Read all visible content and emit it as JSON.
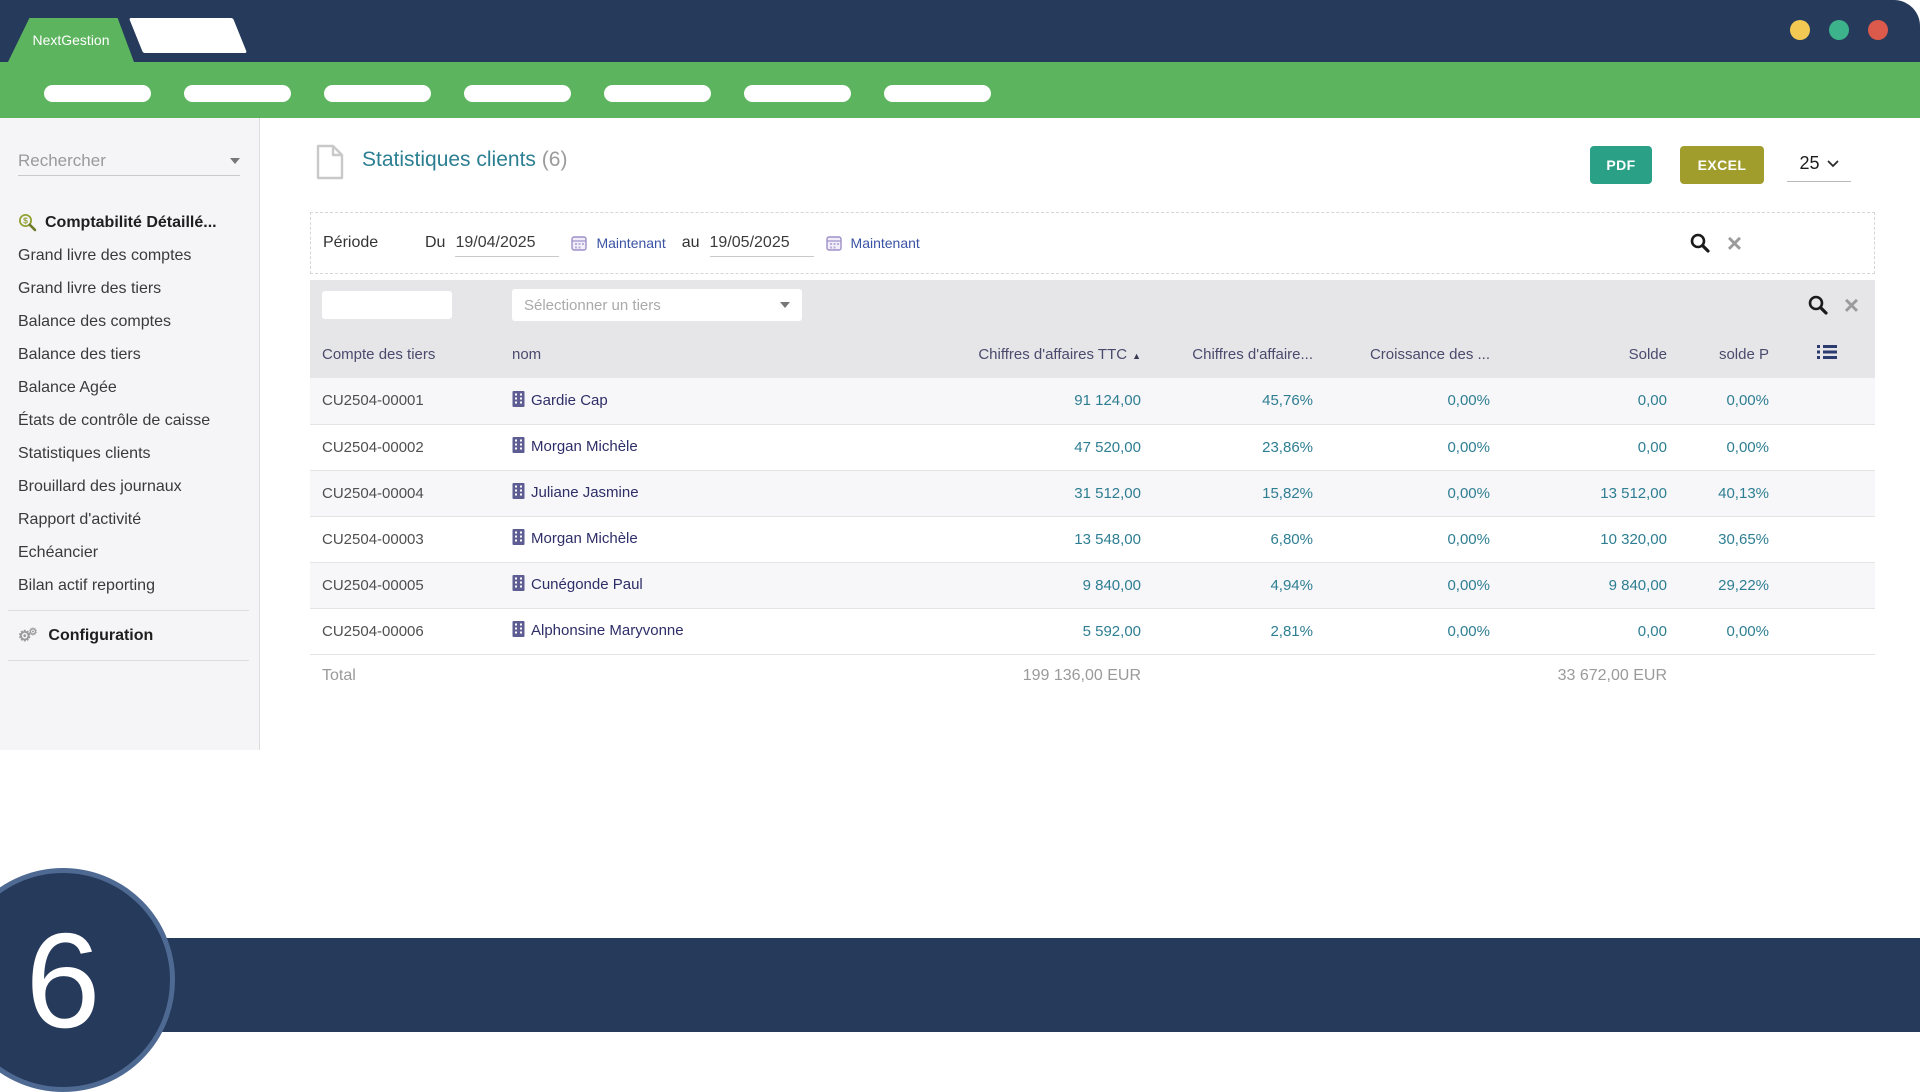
{
  "app": {
    "brand": "NextGestion"
  },
  "window_controls": {
    "colors": [
      "#f2ca53",
      "#3cb38b",
      "#dc5a4b"
    ]
  },
  "topnav": {
    "pill_count": 7
  },
  "accent": {
    "navy": "#263a5b",
    "green": "#5cb45e",
    "teal": "#2c7f92",
    "pdf_button": "#2aa187",
    "excel_button": "#a19d2d",
    "link_indigo": "#3a53a4",
    "name_indigo": "#2e2e68"
  },
  "sidebar": {
    "search_placeholder": "Rechercher",
    "items": [
      {
        "label": "Comptabilité Détaillé...",
        "bold": true,
        "icon": "search-dollar-icon"
      },
      {
        "label": "Grand livre des comptes"
      },
      {
        "label": "Grand livre des tiers"
      },
      {
        "label": "Balance des comptes"
      },
      {
        "label": "Balance des tiers"
      },
      {
        "label": "Balance Agée"
      },
      {
        "label": "États de contrôle de caisse"
      },
      {
        "label": "Statistiques clients"
      },
      {
        "label": "Brouillard des journaux"
      },
      {
        "label": "Rapport d'activité"
      },
      {
        "label": "Echéancier"
      },
      {
        "label": "Bilan actif reporting"
      }
    ],
    "config": {
      "label": "Configuration",
      "icon": "gears-icon"
    }
  },
  "header": {
    "title": "Statistiques clients",
    "count": "(6)",
    "pdf_label": "PDF",
    "excel_label": "EXCEL",
    "page_size": "25"
  },
  "period": {
    "label": "Période",
    "from_label": "Du",
    "from_value": "19/04/2025",
    "from_now": "Maintenant",
    "to_label": "au",
    "to_value": "19/05/2025",
    "to_now": "Maintenant"
  },
  "filters": {
    "tiers_placeholder": "Sélectionner un tiers"
  },
  "table": {
    "columns": [
      "Compte des tiers",
      "nom",
      "Chiffres d'affaires TTC",
      "Chiffres d'affaire...",
      "Croissance des ...",
      "Solde",
      "solde P"
    ],
    "sorted_column": "Chiffres d'affaires TTC",
    "sort_direction": "asc",
    "rows": [
      {
        "code": "CU2504-00001",
        "name": "Gardie Cap",
        "ca_ttc": "91 124,00",
        "ca_pct": "45,76%",
        "croissance": "0,00%",
        "solde": "0,00",
        "solde_p": "0,00%"
      },
      {
        "code": "CU2504-00002",
        "name": "Morgan Michèle",
        "ca_ttc": "47 520,00",
        "ca_pct": "23,86%",
        "croissance": "0,00%",
        "solde": "0,00",
        "solde_p": "0,00%"
      },
      {
        "code": "CU2504-00004",
        "name": "Juliane Jasmine",
        "ca_ttc": "31 512,00",
        "ca_pct": "15,82%",
        "croissance": "0,00%",
        "solde": "13 512,00",
        "solde_p": "40,13%"
      },
      {
        "code": "CU2504-00003",
        "name": "Morgan Michèle",
        "ca_ttc": "13 548,00",
        "ca_pct": "6,80%",
        "croissance": "0,00%",
        "solde": "10 320,00",
        "solde_p": "30,65%"
      },
      {
        "code": "CU2504-00005",
        "name": "Cunégonde Paul",
        "ca_ttc": "9 840,00",
        "ca_pct": "4,94%",
        "croissance": "0,00%",
        "solde": "9 840,00",
        "solde_p": "29,22%"
      },
      {
        "code": "CU2504-00006",
        "name": "Alphonsine Maryvonne",
        "ca_ttc": "5 592,00",
        "ca_pct": "2,81%",
        "croissance": "0,00%",
        "solde": "0,00",
        "solde_p": "0,00%"
      }
    ],
    "total": {
      "label": "Total",
      "ca_ttc": "199 136,00 EUR",
      "solde": "33 672,00 EUR"
    }
  },
  "footer": {
    "page_number": "6"
  }
}
